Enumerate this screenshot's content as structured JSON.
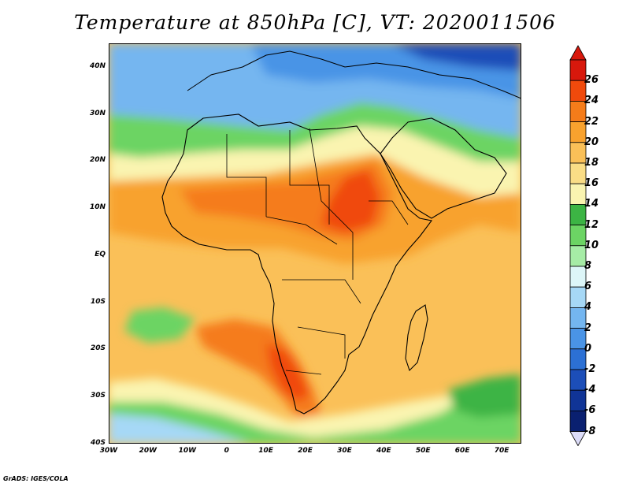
{
  "title": "Temperature at 850hPa [C], VT: 2020011506",
  "credit": "GrADS: IGES/COLA",
  "map": {
    "variable": "Temperature at 850hPa",
    "units": "C",
    "valid_time": "2020011506",
    "lon_range": [
      -30,
      75
    ],
    "lat_range": [
      -40,
      45
    ],
    "lat_labels": [
      "40N",
      "30N",
      "20N",
      "10N",
      "EQ",
      "10S",
      "20S",
      "30S",
      "40S"
    ],
    "lat_values": [
      40,
      30,
      20,
      10,
      0,
      -10,
      -20,
      -30,
      -40
    ],
    "lon_labels": [
      "30W",
      "20W",
      "10W",
      "0",
      "10E",
      "20E",
      "30E",
      "40E",
      "50E",
      "60E",
      "70E"
    ],
    "lon_values": [
      -30,
      -20,
      -10,
      0,
      10,
      20,
      30,
      40,
      50,
      60,
      70
    ]
  },
  "colorbar": {
    "labels": [
      "26",
      "24",
      "22",
      "20",
      "18",
      "16",
      "14",
      "12",
      "10",
      "8",
      "6",
      "4",
      "2",
      "0",
      "-2",
      "-4",
      "-6",
      "-8"
    ],
    "levels": [
      26,
      24,
      22,
      20,
      18,
      16,
      14,
      12,
      10,
      8,
      6,
      4,
      2,
      0,
      -2,
      -4,
      -6,
      -8
    ],
    "colors_top_to_bottom": [
      "#d8180c",
      "#f04a0c",
      "#f57c1a",
      "#f8a22e",
      "#fac058",
      "#fadd86",
      "#faf4b0",
      "#3cb444",
      "#6cd464",
      "#a6eca6",
      "#ddf6f8",
      "#a6d8f6",
      "#74b6f0",
      "#4a94e6",
      "#2c70d4",
      "#1c4eb8",
      "#103496",
      "#0a2070"
    ],
    "above_color": "#d8180c",
    "below_color": "#dcdcf8"
  }
}
